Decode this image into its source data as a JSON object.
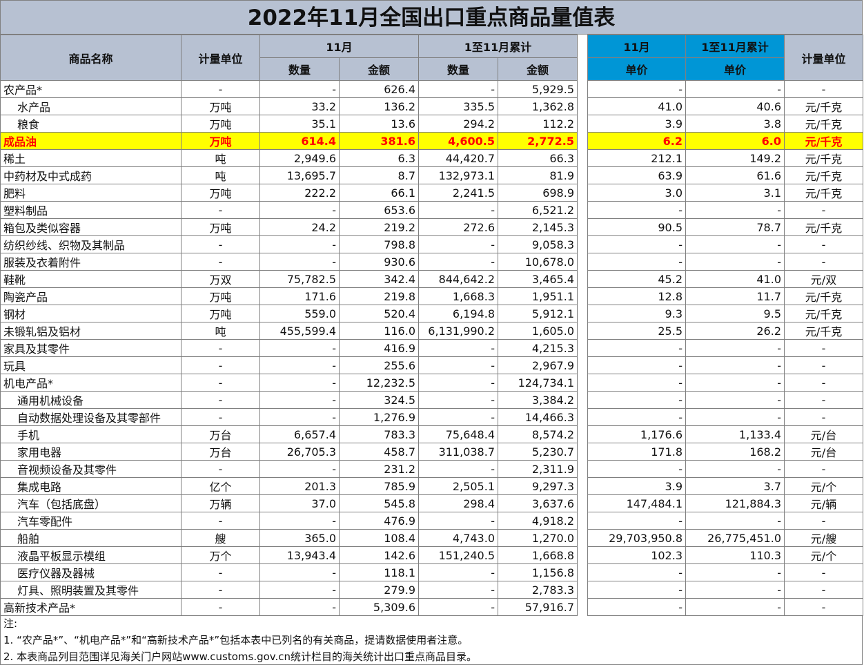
{
  "title": "2022年11月全国出口重点商品量值表",
  "headers": {
    "name": "商品名称",
    "unit": "计量单位",
    "month": "11月",
    "cumulative": "1至11月累计",
    "qty": "数量",
    "amount": "金额",
    "price_month": "11月",
    "price_cum": "1至11月累计",
    "price_label_month": "单价",
    "price_label_cum": "单价",
    "price_unit": "计量单位"
  },
  "rows": [
    {
      "name": "农产品*",
      "unit": "-",
      "qty_m": "-",
      "amt_m": "626.4",
      "qty_c": "-",
      "amt_c": "5,929.5",
      "price_m": "-",
      "price_c": "-",
      "price_unit": "-",
      "indent": false
    },
    {
      "name": "水产品",
      "unit": "万吨",
      "qty_m": "33.2",
      "amt_m": "136.2",
      "qty_c": "335.5",
      "amt_c": "1,362.8",
      "price_m": "41.0",
      "price_c": "40.6",
      "price_unit": "元/千克",
      "indent": true
    },
    {
      "name": "粮食",
      "unit": "万吨",
      "qty_m": "35.1",
      "amt_m": "13.6",
      "qty_c": "294.2",
      "amt_c": "112.2",
      "price_m": "3.9",
      "price_c": "3.8",
      "price_unit": "元/千克",
      "indent": true
    },
    {
      "name": "成品油",
      "unit": "万吨",
      "qty_m": "614.4",
      "amt_m": "381.6",
      "qty_c": "4,600.5",
      "amt_c": "2,772.5",
      "price_m": "6.2",
      "price_c": "6.0",
      "price_unit": "元/千克",
      "indent": false,
      "highlight": true
    },
    {
      "name": "稀土",
      "unit": "吨",
      "qty_m": "2,949.6",
      "amt_m": "6.3",
      "qty_c": "44,420.7",
      "amt_c": "66.3",
      "price_m": "212.1",
      "price_c": "149.2",
      "price_unit": "元/千克",
      "indent": false
    },
    {
      "name": "中药材及中式成药",
      "unit": "吨",
      "qty_m": "13,695.7",
      "amt_m": "8.7",
      "qty_c": "132,973.1",
      "amt_c": "81.9",
      "price_m": "63.9",
      "price_c": "61.6",
      "price_unit": "元/千克",
      "indent": false
    },
    {
      "name": "肥料",
      "unit": "万吨",
      "qty_m": "222.2",
      "amt_m": "66.1",
      "qty_c": "2,241.5",
      "amt_c": "698.9",
      "price_m": "3.0",
      "price_c": "3.1",
      "price_unit": "元/千克",
      "indent": false
    },
    {
      "name": "塑料制品",
      "unit": "-",
      "qty_m": "-",
      "amt_m": "653.6",
      "qty_c": "-",
      "amt_c": "6,521.2",
      "price_m": "-",
      "price_c": "-",
      "price_unit": "-",
      "indent": false
    },
    {
      "name": "箱包及类似容器",
      "unit": "万吨",
      "qty_m": "24.2",
      "amt_m": "219.2",
      "qty_c": "272.6",
      "amt_c": "2,145.3",
      "price_m": "90.5",
      "price_c": "78.7",
      "price_unit": "元/千克",
      "indent": false
    },
    {
      "name": "纺织纱线、织物及其制品",
      "unit": "-",
      "qty_m": "-",
      "amt_m": "798.8",
      "qty_c": "-",
      "amt_c": "9,058.3",
      "price_m": "-",
      "price_c": "-",
      "price_unit": "-",
      "indent": false
    },
    {
      "name": "服装及衣着附件",
      "unit": "-",
      "qty_m": "-",
      "amt_m": "930.6",
      "qty_c": "-",
      "amt_c": "10,678.0",
      "price_m": "-",
      "price_c": "-",
      "price_unit": "-",
      "indent": false
    },
    {
      "name": "鞋靴",
      "unit": "万双",
      "qty_m": "75,782.5",
      "amt_m": "342.4",
      "qty_c": "844,642.2",
      "amt_c": "3,465.4",
      "price_m": "45.2",
      "price_c": "41.0",
      "price_unit": "元/双",
      "indent": false
    },
    {
      "name": "陶瓷产品",
      "unit": "万吨",
      "qty_m": "171.6",
      "amt_m": "219.8",
      "qty_c": "1,668.3",
      "amt_c": "1,951.1",
      "price_m": "12.8",
      "price_c": "11.7",
      "price_unit": "元/千克",
      "indent": false
    },
    {
      "name": "钢材",
      "unit": "万吨",
      "qty_m": "559.0",
      "amt_m": "520.4",
      "qty_c": "6,194.8",
      "amt_c": "5,912.1",
      "price_m": "9.3",
      "price_c": "9.5",
      "price_unit": "元/千克",
      "indent": false
    },
    {
      "name": "未锻轧铝及铝材",
      "unit": "吨",
      "qty_m": "455,599.4",
      "amt_m": "116.0",
      "qty_c": "6,131,990.2",
      "amt_c": "1,605.0",
      "price_m": "25.5",
      "price_c": "26.2",
      "price_unit": "元/千克",
      "indent": false
    },
    {
      "name": "家具及其零件",
      "unit": "-",
      "qty_m": "-",
      "amt_m": "416.9",
      "qty_c": "-",
      "amt_c": "4,215.3",
      "price_m": "-",
      "price_c": "-",
      "price_unit": "-",
      "indent": false
    },
    {
      "name": "玩具",
      "unit": "-",
      "qty_m": "-",
      "amt_m": "255.6",
      "qty_c": "-",
      "amt_c": "2,967.9",
      "price_m": "-",
      "price_c": "-",
      "price_unit": "-",
      "indent": false
    },
    {
      "name": "机电产品*",
      "unit": "-",
      "qty_m": "-",
      "amt_m": "12,232.5",
      "qty_c": "-",
      "amt_c": "124,734.1",
      "price_m": "-",
      "price_c": "-",
      "price_unit": "-",
      "indent": false
    },
    {
      "name": "通用机械设备",
      "unit": "-",
      "qty_m": "-",
      "amt_m": "324.5",
      "qty_c": "-",
      "amt_c": "3,384.2",
      "price_m": "-",
      "price_c": "-",
      "price_unit": "-",
      "indent": true
    },
    {
      "name": "自动数据处理设备及其零部件",
      "unit": "-",
      "qty_m": "-",
      "amt_m": "1,276.9",
      "qty_c": "-",
      "amt_c": "14,466.3",
      "price_m": "-",
      "price_c": "-",
      "price_unit": "-",
      "indent": true
    },
    {
      "name": "手机",
      "unit": "万台",
      "qty_m": "6,657.4",
      "amt_m": "783.3",
      "qty_c": "75,648.4",
      "amt_c": "8,574.2",
      "price_m": "1,176.6",
      "price_c": "1,133.4",
      "price_unit": "元/台",
      "indent": true
    },
    {
      "name": "家用电器",
      "unit": "万台",
      "qty_m": "26,705.3",
      "amt_m": "458.7",
      "qty_c": "311,038.7",
      "amt_c": "5,230.7",
      "price_m": "171.8",
      "price_c": "168.2",
      "price_unit": "元/台",
      "indent": true
    },
    {
      "name": "音视频设备及其零件",
      "unit": "-",
      "qty_m": "-",
      "amt_m": "231.2",
      "qty_c": "-",
      "amt_c": "2,311.9",
      "price_m": "-",
      "price_c": "-",
      "price_unit": "-",
      "indent": true
    },
    {
      "name": "集成电路",
      "unit": "亿个",
      "qty_m": "201.3",
      "amt_m": "785.9",
      "qty_c": "2,505.1",
      "amt_c": "9,297.3",
      "price_m": "3.9",
      "price_c": "3.7",
      "price_unit": "元/个",
      "indent": true
    },
    {
      "name": "汽车（包括底盘）",
      "unit": "万辆",
      "qty_m": "37.0",
      "amt_m": "545.8",
      "qty_c": "298.4",
      "amt_c": "3,637.6",
      "price_m": "147,484.1",
      "price_c": "121,884.3",
      "price_unit": "元/辆",
      "indent": true
    },
    {
      "name": "汽车零配件",
      "unit": "-",
      "qty_m": "-",
      "amt_m": "476.9",
      "qty_c": "-",
      "amt_c": "4,918.2",
      "price_m": "-",
      "price_c": "-",
      "price_unit": "-",
      "indent": true
    },
    {
      "name": "船舶",
      "unit": "艘",
      "qty_m": "365.0",
      "amt_m": "108.4",
      "qty_c": "4,743.0",
      "amt_c": "1,270.0",
      "price_m": "29,703,950.8",
      "price_c": "26,775,451.0",
      "price_unit": "元/艘",
      "indent": true
    },
    {
      "name": "液晶平板显示模组",
      "unit": "万个",
      "qty_m": "13,943.4",
      "amt_m": "142.6",
      "qty_c": "151,240.5",
      "amt_c": "1,668.8",
      "price_m": "102.3",
      "price_c": "110.3",
      "price_unit": "元/个",
      "indent": true
    },
    {
      "name": "医疗仪器及器械",
      "unit": "-",
      "qty_m": "-",
      "amt_m": "118.1",
      "qty_c": "-",
      "amt_c": "1,156.8",
      "price_m": "-",
      "price_c": "-",
      "price_unit": "-",
      "indent": true
    },
    {
      "name": "灯具、照明装置及其零件",
      "unit": "-",
      "qty_m": "-",
      "amt_m": "279.9",
      "qty_c": "-",
      "amt_c": "2,783.3",
      "price_m": "-",
      "price_c": "-",
      "price_unit": "-",
      "indent": true
    },
    {
      "name": "高新技术产品*",
      "unit": "-",
      "qty_m": "-",
      "amt_m": "5,309.6",
      "qty_c": "-",
      "amt_c": "57,916.7",
      "price_m": "-",
      "price_c": "-",
      "price_unit": "-",
      "indent": false
    }
  ],
  "notes": {
    "heading": "注:",
    "line1": "1. “农产品*”、“机电产品*”和“高新技术产品*”包括本表中已列名的有关商品，提请数据使用者注意。",
    "line2": "2. 本表商品列目范围详见海关门户网站www.customs.gov.cn统计栏目的海关统计出口重点商品目录。"
  },
  "colors": {
    "header_bg": "#b7c1d2",
    "price_header_bg": "#0096d6",
    "highlight_bg": "#ffff00",
    "highlight_text": "#ff0000"
  }
}
